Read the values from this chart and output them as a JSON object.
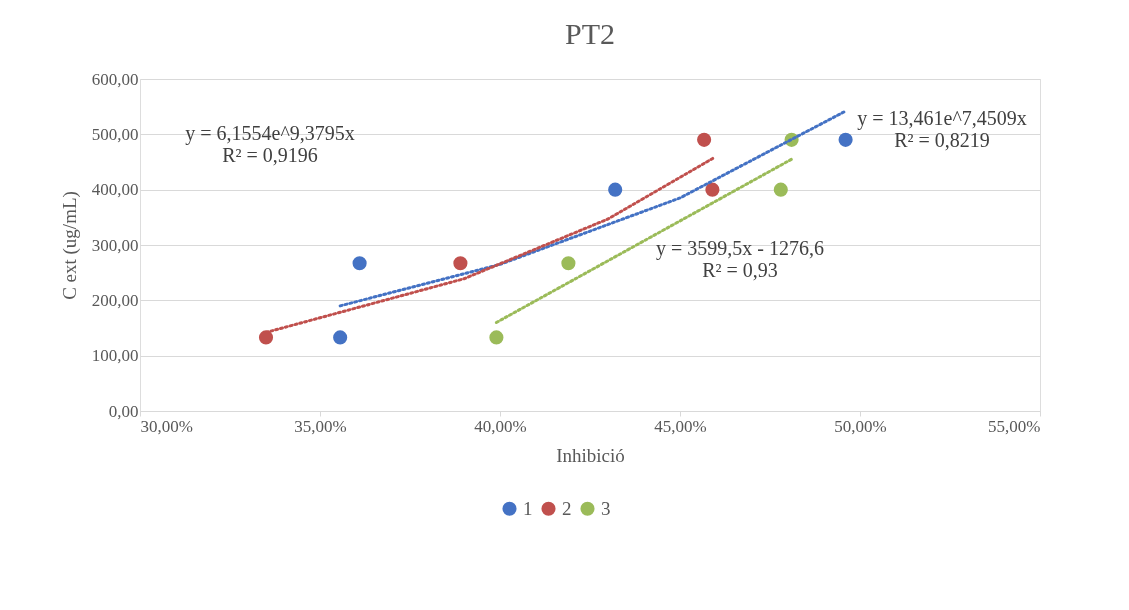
{
  "chart_data": {
    "type": "scatter",
    "title": "PT2",
    "xlabel": "Inhibició",
    "ylabel": "C ext (ug/mL)",
    "xlim": [
      0.3,
      0.55
    ],
    "xticks": [
      {
        "value": 0.3,
        "label": "30,00%"
      },
      {
        "value": 0.35,
        "label": "35,00%"
      },
      {
        "value": 0.4,
        "label": "40,00%"
      },
      {
        "value": 0.45,
        "label": "45,00%"
      },
      {
        "value": 0.5,
        "label": "50,00%"
      },
      {
        "value": 0.55,
        "label": "55,00%"
      }
    ],
    "ylim": [
      0,
      600
    ],
    "yticks": [
      {
        "value": 0,
        "label": "0,00"
      },
      {
        "value": 100,
        "label": "100,00"
      },
      {
        "value": 200,
        "label": "200,00"
      },
      {
        "value": 300,
        "label": "300,00"
      },
      {
        "value": 400,
        "label": "400,00"
      },
      {
        "value": 500,
        "label": "500,00"
      },
      {
        "value": 600,
        "label": "600,00"
      }
    ],
    "grid": "y",
    "legend": "bottom",
    "marker": "circle",
    "series": [
      {
        "name": "1",
        "color": "#4472c4",
        "x": [
          0.3556,
          0.361,
          0.432,
          0.496
        ],
        "values": [
          133,
          267,
          400,
          490
        ]
      },
      {
        "name": "2",
        "color": "#c0504d",
        "x": [
          0.335,
          0.389,
          0.4567,
          0.459
        ],
        "values": [
          133,
          267,
          490,
          400
        ]
      },
      {
        "name": "3",
        "color": "#9bbb59",
        "x": [
          0.399,
          0.419,
          0.478,
          0.481
        ],
        "values": [
          133,
          267,
          400,
          490
        ]
      },
      {
        "type": "line",
        "color": "#4472c4",
        "marker": "none",
        "line_style": "dotted",
        "x": [
          0.3556,
          0.4,
          0.45,
          0.496
        ],
        "values": [
          190,
          265,
          385,
          542
        ]
      },
      {
        "type": "line",
        "color": "#c0504d",
        "marker": "none",
        "line_style": "dotted",
        "x": [
          0.335,
          0.39,
          0.43,
          0.4595
        ],
        "values": [
          142,
          239,
          347,
          458
        ]
      },
      {
        "type": "line",
        "color": "#9bbb59",
        "marker": "none",
        "line_style": "dotted",
        "x": [
          0.399,
          0.481
        ],
        "values": [
          160,
          455
        ]
      }
    ],
    "annotations": [
      "y = 13,461e^7,4509x\nR² = 0,8219",
      "y = 6,1554e^9,3795x\nR² = 0,9196",
      "y = 3599,5x - 1276,6\nR² = 0,93"
    ]
  }
}
